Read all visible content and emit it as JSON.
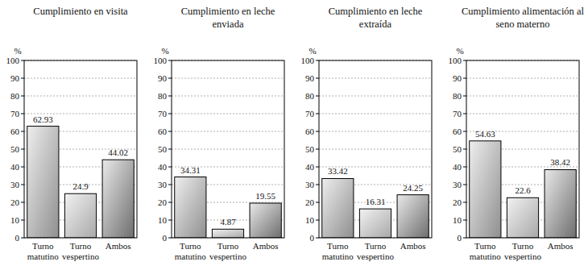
{
  "chart_data": [
    {
      "type": "bar",
      "title": "Cumplimiento en visita",
      "y_label": "%",
      "categories": [
        "Turno matutino",
        "Turno vespertino",
        "Ambos"
      ],
      "values": [
        62.93,
        24.9,
        44.02
      ],
      "colors": [
        "#8f8f8f",
        "#a8a8a8",
        "#6e6e6e"
      ],
      "ylim": [
        0,
        100
      ],
      "yticks": [
        0,
        10,
        20,
        30,
        40,
        50,
        60,
        70,
        80,
        90,
        100
      ],
      "grid": true,
      "data_labels": true
    },
    {
      "type": "bar",
      "title": "Cumplimiento en leche enviada",
      "y_label": "%",
      "categories": [
        "Turno matutino",
        "Turno vespertino",
        "Ambos"
      ],
      "values": [
        34.31,
        4.87,
        19.55
      ],
      "colors": [
        "#8f8f8f",
        "#a8a8a8",
        "#6e6e6e"
      ],
      "ylim": [
        0,
        100
      ],
      "yticks": [
        0,
        10,
        20,
        30,
        40,
        50,
        60,
        70,
        80,
        90,
        100
      ],
      "grid": true,
      "data_labels": true
    },
    {
      "type": "bar",
      "title": "Cumplimiento en leche extraída",
      "y_label": "%",
      "categories": [
        "Turno matutino",
        "Turno vespertino",
        "Ambos"
      ],
      "values": [
        33.42,
        16.31,
        24.25
      ],
      "colors": [
        "#8f8f8f",
        "#a8a8a8",
        "#6e6e6e"
      ],
      "ylim": [
        0,
        100
      ],
      "yticks": [
        0,
        10,
        20,
        30,
        40,
        50,
        60,
        70,
        80,
        90,
        100
      ],
      "grid": true,
      "data_labels": true
    },
    {
      "type": "bar",
      "title": "Cumplimiento alimentación al seno materno",
      "y_label": "%",
      "categories": [
        "Turno matutino",
        "Turno vespertino",
        "Ambos"
      ],
      "values": [
        54.63,
        22.6,
        38.42
      ],
      "colors": [
        "#8f8f8f",
        "#a8a8a8",
        "#6e6e6e"
      ],
      "ylim": [
        0,
        100
      ],
      "yticks": [
        0,
        10,
        20,
        30,
        40,
        50,
        60,
        70,
        80,
        90,
        100
      ],
      "grid": true,
      "data_labels": true
    }
  ]
}
